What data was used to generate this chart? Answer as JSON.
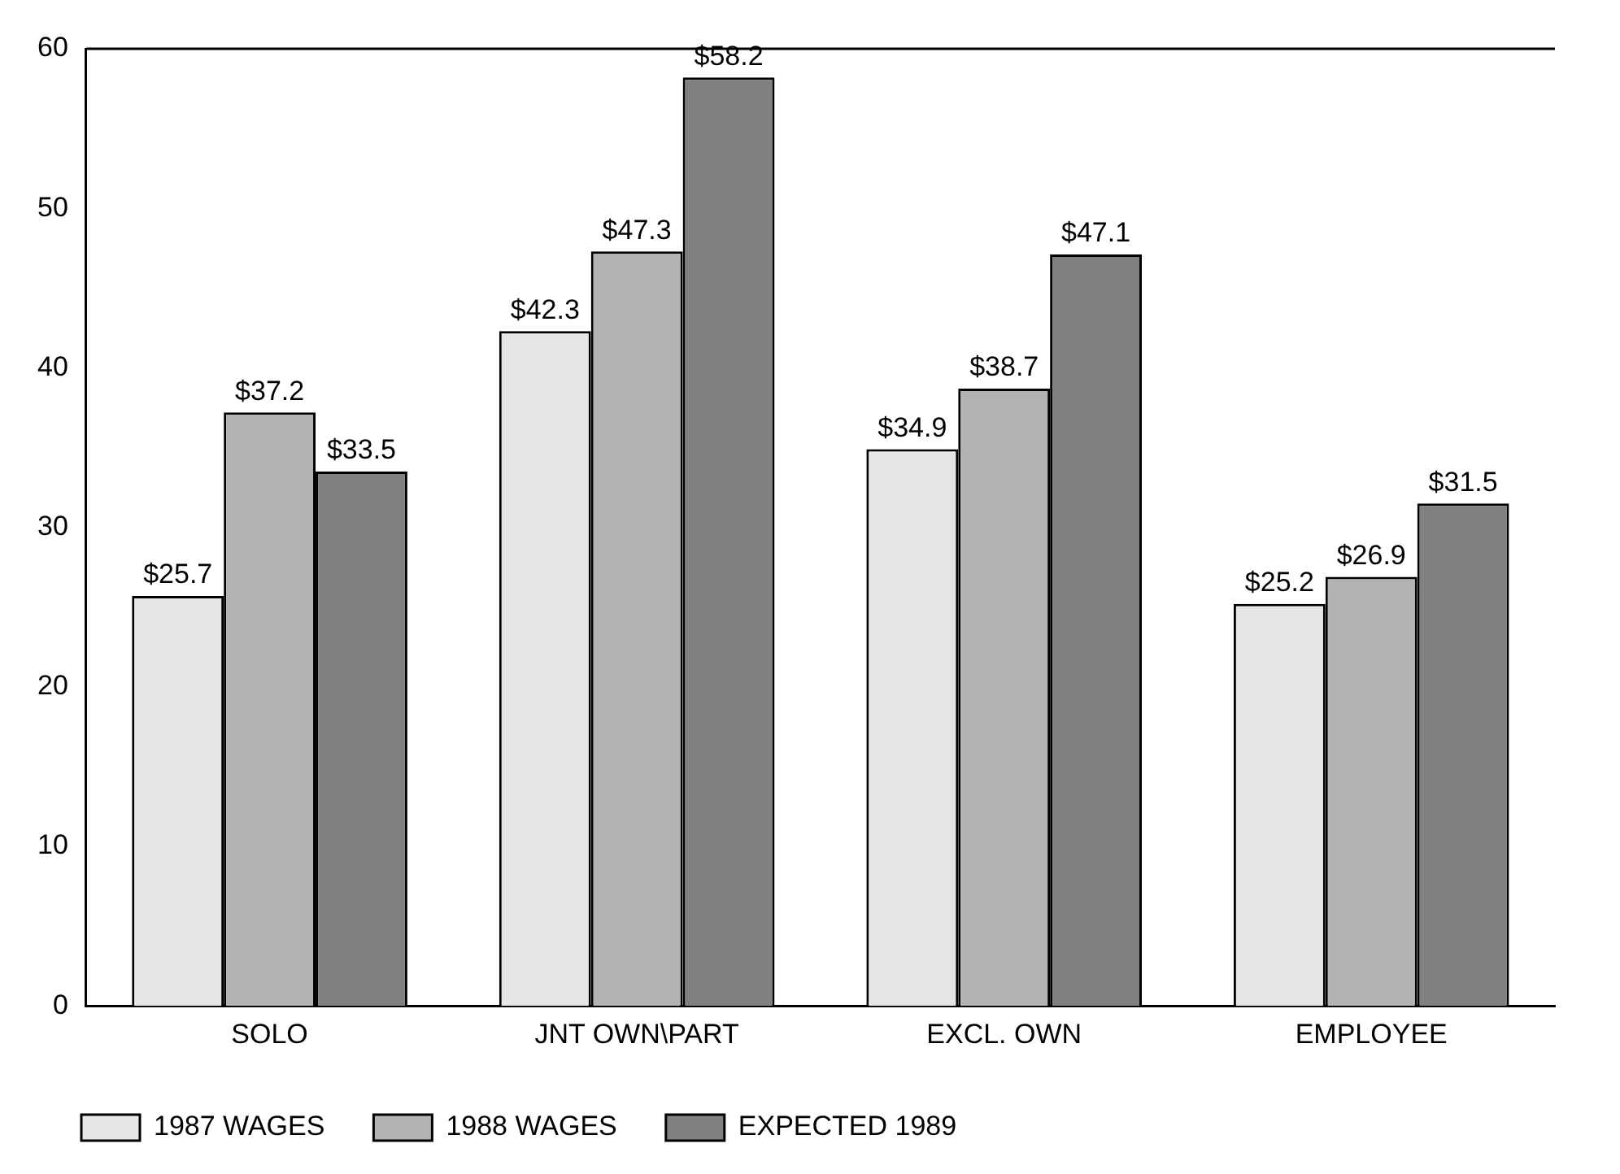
{
  "chart_data": {
    "type": "bar",
    "categories": [
      "SOLO",
      "JNT OWN\\PART",
      "EXCL. OWN",
      "EMPLOYEE"
    ],
    "series": [
      {
        "name": "1987 WAGES",
        "color": "#e6e6e6",
        "values": [
          25.7,
          42.3,
          34.9,
          25.2
        ],
        "value_labels": [
          "$25.7",
          "$42.3",
          "$34.9",
          "$25.2"
        ]
      },
      {
        "name": "1988 WAGES",
        "color": "#b3b3b3",
        "values": [
          37.2,
          47.3,
          38.7,
          26.9
        ],
        "value_labels": [
          "$37.2",
          "$47.3",
          "$38.7",
          "$26.9"
        ]
      },
      {
        "name": "EXPECTED 1989",
        "color": "#808080",
        "values": [
          33.5,
          58.2,
          47.1,
          31.5
        ],
        "value_labels": [
          "$33.5",
          "$58.2",
          "$47.1",
          "$31.5"
        ]
      }
    ],
    "ylim": [
      0,
      60
    ],
    "yticks": [
      0,
      10,
      20,
      30,
      40,
      50,
      60
    ],
    "grid": false,
    "legend": "bottom"
  }
}
